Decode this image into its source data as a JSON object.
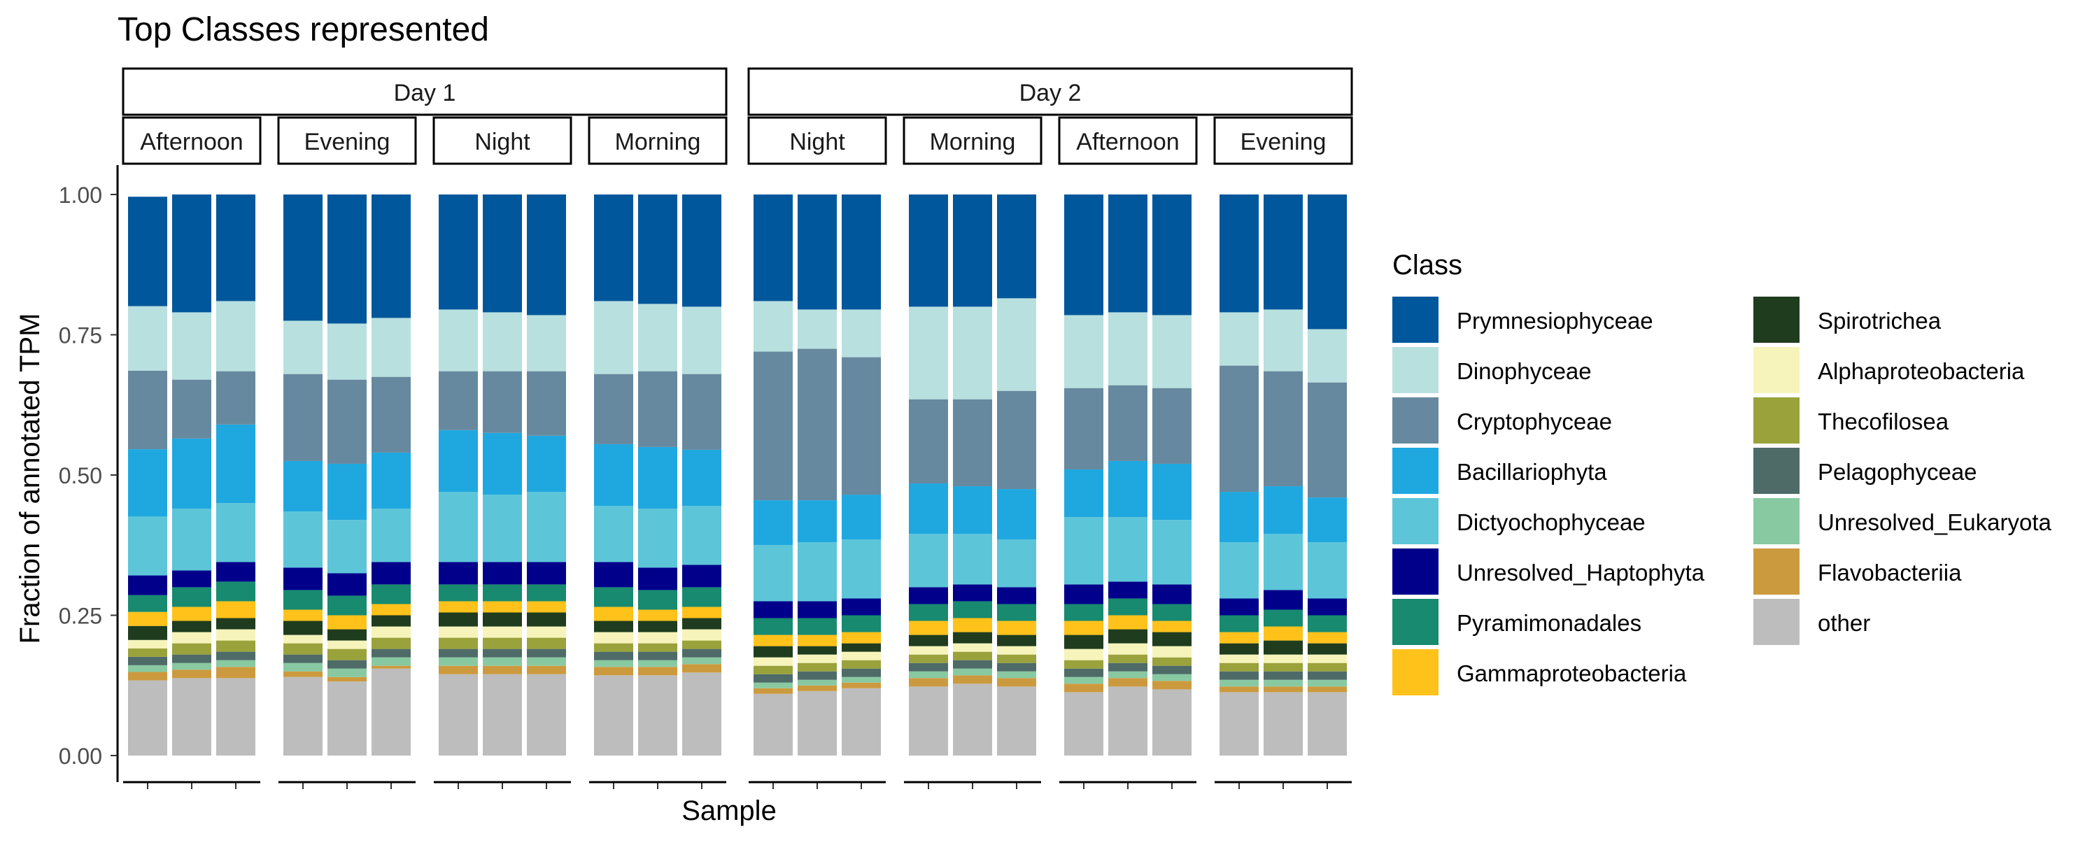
{
  "chart_data": {
    "type": "bar",
    "stacked": true,
    "title": "Top Classes represented",
    "xlabel": "Sample",
    "ylabel": "Fraction of annotated TPM",
    "ylim": [
      0,
      1
    ],
    "yticks": [
      "0.00",
      "0.25",
      "0.50",
      "0.75",
      "1.00"
    ],
    "grid": false,
    "legend_title": "Class",
    "legend_position": "right",
    "classes": [
      {
        "name": "Prymnesiophyceae",
        "color": "#01579B"
      },
      {
        "name": "Dinophyceae",
        "color": "#B8E0DF"
      },
      {
        "name": "Cryptophyceae",
        "color": "#67899F"
      },
      {
        "name": "Bacillariophyta",
        "color": "#1FA8E0"
      },
      {
        "name": "Dictyochophyceae",
        "color": "#5CC5D8"
      },
      {
        "name": "Unresolved_Haptophyta",
        "color": "#00008B"
      },
      {
        "name": "Pyramimonadales",
        "color": "#178A6F"
      },
      {
        "name": "Gammaproteobacteria",
        "color": "#FEC21A"
      },
      {
        "name": "Spirotrichea",
        "color": "#1F3D1E"
      },
      {
        "name": "Alphaproteobacteria",
        "color": "#F6F4BB"
      },
      {
        "name": "Thecofilosea",
        "color": "#9AA23B"
      },
      {
        "name": "Pelagophyceae",
        "color": "#4E6B68"
      },
      {
        "name": "Unresolved_Eukaryota",
        "color": "#89C9A1"
      },
      {
        "name": "Flavobacteriia",
        "color": "#CC9A3E"
      },
      {
        "name": "other",
        "color": "#BDBDBD"
      }
    ],
    "day_groups": [
      {
        "label": "Day 1",
        "panels": [
          {
            "label": "Afternoon",
            "bars": [
              [
                0.195,
                0.115,
                0.14,
                0.12,
                0.105,
                0.035,
                0.03,
                0.025,
                0.025,
                0.015,
                0.015,
                0.015,
                0.012,
                0.015,
                0.134
              ],
              [
                0.21,
                0.12,
                0.105,
                0.125,
                0.11,
                0.03,
                0.035,
                0.025,
                0.02,
                0.02,
                0.02,
                0.015,
                0.012,
                0.015,
                0.138
              ],
              [
                0.19,
                0.125,
                0.095,
                0.14,
                0.105,
                0.035,
                0.035,
                0.03,
                0.02,
                0.02,
                0.02,
                0.015,
                0.012,
                0.02,
                0.138
              ]
            ]
          },
          {
            "label": "Evening",
            "bars": [
              [
                0.225,
                0.095,
                0.155,
                0.09,
                0.1,
                0.04,
                0.035,
                0.02,
                0.025,
                0.015,
                0.02,
                0.015,
                0.015,
                0.01,
                0.14
              ],
              [
                0.23,
                0.1,
                0.15,
                0.1,
                0.095,
                0.04,
                0.035,
                0.025,
                0.02,
                0.015,
                0.02,
                0.015,
                0.015,
                0.008,
                0.132
              ],
              [
                0.22,
                0.105,
                0.135,
                0.1,
                0.095,
                0.04,
                0.035,
                0.02,
                0.02,
                0.02,
                0.02,
                0.015,
                0.015,
                0.005,
                0.155
              ]
            ]
          },
          {
            "label": "Night",
            "bars": [
              [
                0.205,
                0.11,
                0.105,
                0.11,
                0.125,
                0.04,
                0.03,
                0.02,
                0.025,
                0.02,
                0.02,
                0.015,
                0.015,
                0.015,
                0.145
              ],
              [
                0.21,
                0.105,
                0.11,
                0.11,
                0.12,
                0.04,
                0.03,
                0.02,
                0.025,
                0.02,
                0.02,
                0.015,
                0.015,
                0.015,
                0.145
              ],
              [
                0.215,
                0.1,
                0.115,
                0.1,
                0.125,
                0.04,
                0.03,
                0.02,
                0.025,
                0.02,
                0.02,
                0.015,
                0.015,
                0.015,
                0.145
              ]
            ]
          },
          {
            "label": "Morning",
            "bars": [
              [
                0.19,
                0.13,
                0.125,
                0.11,
                0.1,
                0.045,
                0.035,
                0.025,
                0.02,
                0.02,
                0.015,
                0.015,
                0.012,
                0.015,
                0.143
              ],
              [
                0.195,
                0.12,
                0.135,
                0.11,
                0.105,
                0.04,
                0.035,
                0.02,
                0.02,
                0.02,
                0.015,
                0.015,
                0.012,
                0.015,
                0.143
              ],
              [
                0.2,
                0.12,
                0.135,
                0.1,
                0.105,
                0.04,
                0.035,
                0.02,
                0.02,
                0.02,
                0.015,
                0.015,
                0.012,
                0.015,
                0.148
              ]
            ]
          }
        ]
      },
      {
        "label": "Day 2",
        "panels": [
          {
            "label": "Night",
            "bars": [
              [
                0.19,
                0.09,
                0.265,
                0.08,
                0.1,
                0.03,
                0.03,
                0.02,
                0.02,
                0.015,
                0.015,
                0.015,
                0.01,
                0.01,
                0.11
              ],
              [
                0.205,
                0.07,
                0.27,
                0.075,
                0.105,
                0.03,
                0.03,
                0.02,
                0.015,
                0.015,
                0.015,
                0.015,
                0.01,
                0.01,
                0.115
              ],
              [
                0.205,
                0.085,
                0.245,
                0.08,
                0.105,
                0.03,
                0.03,
                0.02,
                0.015,
                0.015,
                0.015,
                0.015,
                0.01,
                0.01,
                0.12
              ]
            ]
          },
          {
            "label": "Morning",
            "bars": [
              [
                0.2,
                0.165,
                0.15,
                0.09,
                0.095,
                0.03,
                0.03,
                0.025,
                0.02,
                0.015,
                0.015,
                0.015,
                0.012,
                0.015,
                0.123
              ],
              [
                0.2,
                0.165,
                0.155,
                0.085,
                0.09,
                0.03,
                0.03,
                0.025,
                0.02,
                0.015,
                0.015,
                0.015,
                0.012,
                0.015,
                0.128
              ],
              [
                0.185,
                0.165,
                0.175,
                0.09,
                0.085,
                0.03,
                0.03,
                0.025,
                0.02,
                0.015,
                0.015,
                0.015,
                0.012,
                0.015,
                0.123
              ]
            ]
          },
          {
            "label": "Afternoon",
            "bars": [
              [
                0.215,
                0.13,
                0.145,
                0.085,
                0.12,
                0.035,
                0.03,
                0.025,
                0.025,
                0.02,
                0.015,
                0.015,
                0.012,
                0.015,
                0.113
              ],
              [
                0.21,
                0.13,
                0.135,
                0.1,
                0.115,
                0.03,
                0.03,
                0.025,
                0.025,
                0.02,
                0.015,
                0.015,
                0.012,
                0.015,
                0.123
              ],
              [
                0.215,
                0.13,
                0.135,
                0.1,
                0.115,
                0.035,
                0.03,
                0.02,
                0.025,
                0.02,
                0.015,
                0.015,
                0.012,
                0.015,
                0.118
              ]
            ]
          },
          {
            "label": "Evening",
            "bars": [
              [
                0.21,
                0.095,
                0.225,
                0.09,
                0.1,
                0.03,
                0.03,
                0.02,
                0.02,
                0.015,
                0.015,
                0.015,
                0.012,
                0.01,
                0.113
              ],
              [
                0.205,
                0.11,
                0.205,
                0.085,
                0.1,
                0.035,
                0.03,
                0.025,
                0.025,
                0.015,
                0.015,
                0.015,
                0.012,
                0.01,
                0.113
              ],
              [
                0.24,
                0.095,
                0.205,
                0.08,
                0.1,
                0.03,
                0.03,
                0.02,
                0.02,
                0.015,
                0.015,
                0.015,
                0.012,
                0.01,
                0.113
              ]
            ]
          }
        ]
      }
    ]
  }
}
